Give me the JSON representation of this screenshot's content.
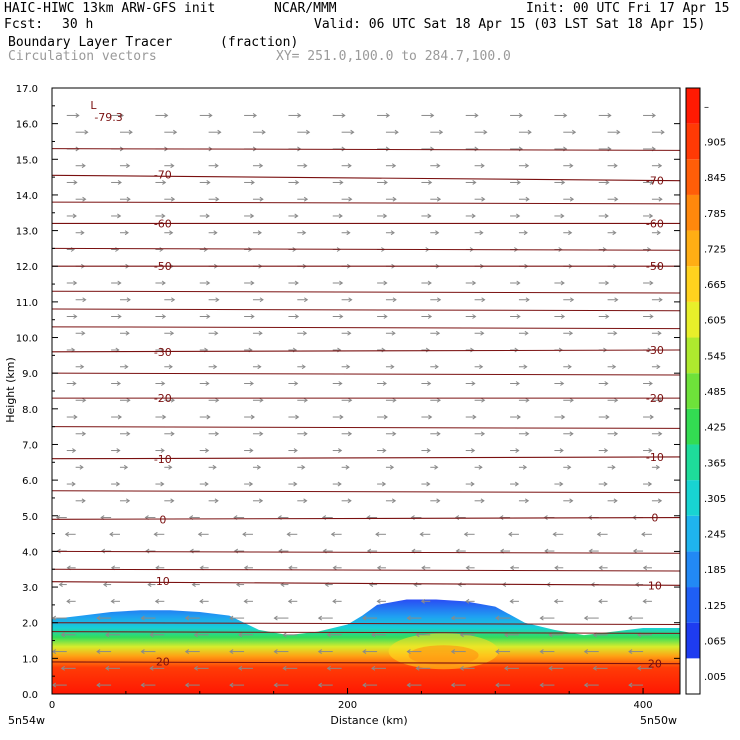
{
  "header": {
    "model": "HAIC-HIWC 13km ARW-GFS init",
    "org": "NCAR/MMM",
    "init": "Init: 00 UTC Fri 17 Apr 15",
    "fcst_label": "Fcst:",
    "fcst_value": "30 h",
    "valid": "Valid: 06 UTC Sat 18 Apr 15 (03 LST Sat 18 Apr 15)",
    "field1": "Boundary Layer Tracer",
    "field1_units": "(fraction)",
    "field2": "Circulation vectors",
    "xy": "XY= 251.0,100.0 to 284.7,100.0"
  },
  "chart_data": {
    "type": "heatmap",
    "xlabel": "Distance (km)",
    "ylabel": "Height (km)",
    "xlim": [
      0,
      425
    ],
    "ylim": [
      0,
      17
    ],
    "x_ticks": [
      "0",
      "200",
      "400"
    ],
    "y_ticks": [
      "0.0",
      "1.0",
      "2.0",
      "3.0",
      "4.0",
      "5.0",
      "6.0",
      "7.0",
      "8.0",
      "9.0",
      "10.0",
      "11.0",
      "12.0",
      "13.0",
      "14.0",
      "15.0",
      "16.0",
      "17.0"
    ],
    "x_end_labels": {
      "left": "5n54w",
      "right": "5n50w"
    },
    "colorbar": {
      "labels": [
        ".005",
        ".065",
        ".125",
        ".185",
        ".245",
        ".305",
        ".365",
        ".425",
        ".485",
        ".545",
        ".605",
        ".665",
        ".725",
        ".785",
        ".845",
        ".905",
        "–"
      ],
      "colors": [
        "#ffffff",
        "#1e3cf0",
        "#1f5ff5",
        "#2289f5",
        "#1fb4ee",
        "#18d4d2",
        "#1edc9a",
        "#33dc52",
        "#6ee23a",
        "#aeea2e",
        "#e8ef2a",
        "#ffd21e",
        "#ffae14",
        "#ff880c",
        "#ff5e08",
        "#ff3a05",
        "#ff1a02"
      ]
    },
    "tracer_top_km": {
      "distance": [
        0,
        20,
        40,
        60,
        80,
        100,
        120,
        140,
        160,
        180,
        200,
        210,
        220,
        240,
        260,
        280,
        300,
        320,
        340,
        360,
        380,
        400,
        425
      ],
      "height": [
        2.1,
        2.2,
        2.3,
        2.35,
        2.35,
        2.3,
        2.2,
        1.8,
        1.65,
        1.75,
        1.95,
        2.2,
        2.5,
        2.65,
        2.65,
        2.6,
        2.45,
        2.0,
        1.8,
        1.65,
        1.75,
        1.85,
        1.85
      ]
    },
    "temperature_contours_c": [
      {
        "value": 20,
        "label": "20",
        "left_km": 0.9,
        "right_km": 0.85
      },
      {
        "value": 10,
        "label": "10",
        "left_km": 3.15,
        "right_km": 3.05
      },
      {
        "value": 0,
        "label": "0",
        "left_km": 4.9,
        "right_km": 4.95
      },
      {
        "value": -10,
        "label": "-10",
        "left_km": 6.6,
        "right_km": 6.65
      },
      {
        "value": -20,
        "label": "-20",
        "left_km": 8.3,
        "right_km": 8.3
      },
      {
        "value": -30,
        "label": "-30",
        "left_km": 9.6,
        "right_km": 9.65
      },
      {
        "value": -50,
        "label": "-50",
        "left_km": 12.0,
        "right_km": 12.0
      },
      {
        "value": -60,
        "label": "-60",
        "left_km": 13.2,
        "right_km": 13.2
      },
      {
        "value": -70,
        "label": "-70",
        "left_km": 14.55,
        "right_km": 14.4
      }
    ],
    "extra_isolines_km": [
      1.75,
      2.0,
      3.5,
      4.0,
      5.7,
      7.5,
      9.0,
      10.3,
      10.8,
      11.3,
      12.5,
      13.8,
      15.3
    ],
    "min_marker": {
      "label": "L",
      "value": "-79.3",
      "distance": 30,
      "height": 16.3
    }
  }
}
